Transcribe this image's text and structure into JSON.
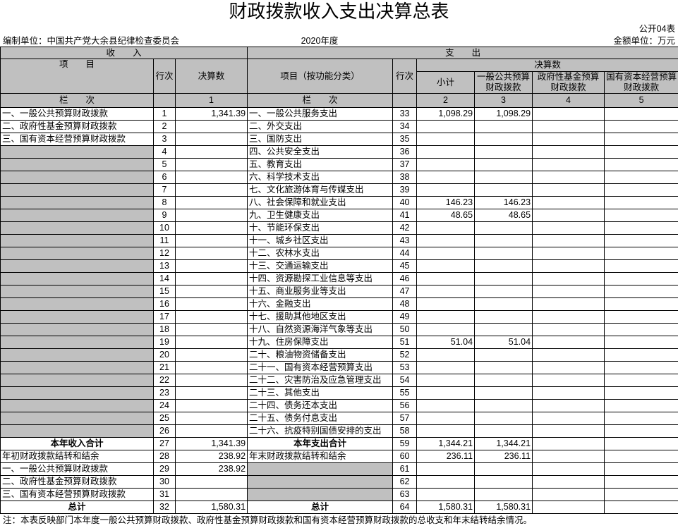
{
  "title": "财政拨款收入支出决算总表",
  "form_no": "公开04表",
  "unit": "编制单位：中国共产党大余县纪律检查委员会",
  "year": "2020年度",
  "currency": "金额单位：万元",
  "header": {
    "income": "收　　入",
    "expense": "支　　出",
    "item": "项　　目",
    "line": "行次",
    "amount": "决算数",
    "func_item": "项目（按功能分类）",
    "line2": "行次",
    "amount2": "决算数",
    "subtotal": "小计",
    "general": "一般公共预算财政拨款",
    "fund": "政府性基金预算财政拨款",
    "state": "国有资本经营预算财政拨款",
    "column_label": "栏　　次",
    "column_label2": "栏　　次",
    "col_nums": [
      "1",
      "2",
      "3",
      "4",
      "5"
    ]
  },
  "rows": [
    [
      "一、一般公共预算财政拨款",
      "1",
      "1,341.39",
      "一、一般公共服务支出",
      "33",
      "1,098.29",
      "1,098.29",
      null,
      null
    ],
    [
      "二、政府性基金预算财政拨款",
      "2",
      null,
      "二、外交支出",
      "34",
      null,
      null,
      null,
      null
    ],
    [
      "三、国有资本经营预算财政拨款",
      "3",
      null,
      "三、国防支出",
      "35",
      null,
      null,
      null,
      null
    ],
    [
      null,
      "4",
      null,
      "四、公共安全支出",
      "36",
      null,
      null,
      null,
      null
    ],
    [
      null,
      "5",
      null,
      "五、教育支出",
      "37",
      null,
      null,
      null,
      null
    ],
    [
      null,
      "6",
      null,
      "六、科学技术支出",
      "38",
      null,
      null,
      null,
      null
    ],
    [
      null,
      "7",
      null,
      "七、文化旅游体育与传媒支出",
      "39",
      null,
      null,
      null,
      null
    ],
    [
      null,
      "8",
      null,
      "八、社会保障和就业支出",
      "40",
      "146.23",
      "146.23",
      null,
      null
    ],
    [
      null,
      "9",
      null,
      "九、卫生健康支出",
      "41",
      "48.65",
      "48.65",
      null,
      null
    ],
    [
      null,
      "10",
      null,
      "十、节能环保支出",
      "42",
      null,
      null,
      null,
      null
    ],
    [
      null,
      "11",
      null,
      "十一、城乡社区支出",
      "43",
      null,
      null,
      null,
      null
    ],
    [
      null,
      "12",
      null,
      "十二、农林水支出",
      "44",
      null,
      null,
      null,
      null
    ],
    [
      null,
      "13",
      null,
      "十三、交通运输支出",
      "45",
      null,
      null,
      null,
      null
    ],
    [
      null,
      "14",
      null,
      "十四、资源勘探工业信息等支出",
      "46",
      null,
      null,
      null,
      null
    ],
    [
      null,
      "15",
      null,
      "十五、商业服务业等支出",
      "47",
      null,
      null,
      null,
      null
    ],
    [
      null,
      "16",
      null,
      "十六、金融支出",
      "48",
      null,
      null,
      null,
      null
    ],
    [
      null,
      "17",
      null,
      "十七、援助其他地区支出",
      "49",
      null,
      null,
      null,
      null
    ],
    [
      null,
      "18",
      null,
      "十八、自然资源海洋气象等支出",
      "50",
      null,
      null,
      null,
      null
    ],
    [
      null,
      "19",
      null,
      "十九、住房保障支出",
      "51",
      "51.04",
      "51.04",
      null,
      null
    ],
    [
      null,
      "20",
      null,
      "二十、粮油物资储备支出",
      "52",
      null,
      null,
      null,
      null
    ],
    [
      null,
      "21",
      null,
      "二十一、国有资本经营预算支出",
      "53",
      null,
      null,
      null,
      null
    ],
    [
      null,
      "22",
      null,
      "二十二、灾害防治及应急管理支出",
      "54",
      null,
      null,
      null,
      null
    ],
    [
      null,
      "23",
      null,
      "二十三、其他支出",
      "55",
      null,
      null,
      null,
      null
    ],
    [
      null,
      "24",
      null,
      "二十四、债务还本支出",
      "56",
      null,
      null,
      null,
      null
    ],
    [
      null,
      "25",
      null,
      "二十五、债务付息支出",
      "57",
      null,
      null,
      null,
      null
    ],
    [
      null,
      "26",
      null,
      "二十六、抗疫特别国债安排的支出",
      "58",
      null,
      null,
      null,
      null
    ],
    [
      "本年收入合计",
      "27",
      "1,341.39",
      "本年支出合计",
      "59",
      "1,344.21",
      "1,344.21",
      null,
      null
    ],
    [
      "年初财政拨款结转和结余",
      "28",
      "238.92",
      "年末财政拨款结转和结余",
      "60",
      "236.11",
      "236.11",
      null,
      null
    ],
    [
      "一、一般公共预算财政拨款",
      "29",
      "238.92",
      null,
      "61",
      null,
      null,
      null,
      null
    ],
    [
      "二、政府性基金预算财政拨款",
      "30",
      null,
      null,
      "62",
      null,
      null,
      null,
      null
    ],
    [
      "三、国有资本经营预算财政拨款",
      "31",
      null,
      null,
      "63",
      null,
      null,
      null,
      null
    ],
    [
      "总计",
      "32",
      "1,580.31",
      "总计",
      "64",
      "1,580.31",
      "1,580.31",
      null,
      null
    ]
  ],
  "note": "注：本表反映部门本年度一般公共预算财政拨款、政府性基金预算财政拨款和国有资本经营预算财政拨款的总收支和年末结转结余情况。"
}
